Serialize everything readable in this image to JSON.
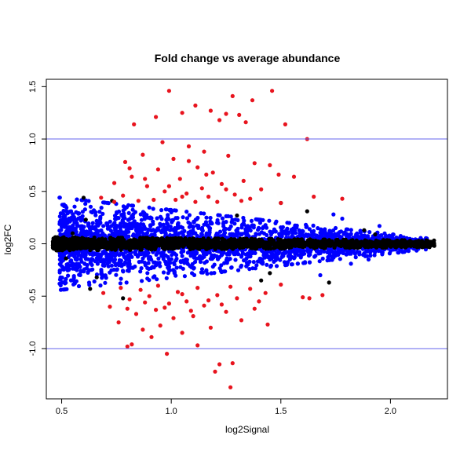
{
  "chart_data": {
    "type": "scatter",
    "title": "Fold change vs average abundance",
    "xlabel": "log2Signal",
    "ylabel": "log2FC",
    "xlim": [
      0.43,
      2.26
    ],
    "ylim": [
      -1.48,
      1.57
    ],
    "x_ticks": [
      0.5,
      1.0,
      1.5,
      2.0
    ],
    "x_tick_labels": [
      "0.5",
      "1.0",
      "1.5",
      "2.0"
    ],
    "y_ticks": [
      -1.0,
      -0.5,
      0.0,
      0.5,
      1.0,
      1.5
    ],
    "y_tick_labels": [
      "-1.0",
      "-0.5",
      "0.0",
      "0.5",
      "1.0",
      "1.5"
    ],
    "grid": false,
    "reference_lines": [
      {
        "axis": "y",
        "value": 1.0,
        "color": "#6666ee"
      },
      {
        "axis": "y",
        "value": -1.0,
        "color": "#6666ee"
      }
    ],
    "colors": {
      "background_points": "#000000",
      "mid_points": "#0000ff",
      "extreme_points": "#e8141e"
    },
    "series": [
      {
        "color": "#000000",
        "band": {
          "x_range": [
            0.46,
            2.2
          ],
          "y_center": 0.0,
          "y_spread_start": 0.06,
          "y_spread_end": 0.03
        },
        "points": [
          [
            0.6,
            0.44
          ],
          [
            0.73,
            0.41
          ],
          [
            0.66,
            -0.32
          ],
          [
            0.63,
            -0.43
          ],
          [
            0.78,
            -0.52
          ],
          [
            1.88,
            0.13
          ],
          [
            1.93,
            0.09
          ],
          [
            2.05,
            -0.03
          ],
          [
            2.12,
            -0.01
          ],
          [
            2.2,
            -0.02
          ],
          [
            1.62,
            0.31
          ],
          [
            1.45,
            -0.28
          ],
          [
            1.3,
            0.27
          ],
          [
            1.41,
            -0.35
          ],
          [
            0.55,
            0.1
          ],
          [
            0.52,
            -0.14
          ],
          [
            1.96,
            0.02
          ],
          [
            1.5,
            0.39
          ],
          [
            1.72,
            -0.37
          ],
          [
            0.61,
            0.23
          ]
        ]
      },
      {
        "color": "#0000ff",
        "band": {
          "x_range": [
            0.49,
            2.17
          ],
          "y_center": 0.0,
          "y_spread_start": 0.42,
          "y_spread_end": 0.05
        },
        "points": [
          [
            1.78,
            0.24
          ],
          [
            1.82,
            -0.19
          ],
          [
            2.0,
            -0.07
          ],
          [
            2.1,
            0.04
          ],
          [
            1.95,
            0.17
          ],
          [
            1.9,
            -0.15
          ],
          [
            2.15,
            -0.01
          ],
          [
            1.68,
            -0.3
          ],
          [
            1.74,
            0.28
          ],
          [
            0.64,
            0.3
          ],
          [
            0.62,
            -0.27
          ]
        ]
      },
      {
        "color": "#e8141e",
        "points": [
          [
            0.99,
            1.46
          ],
          [
            1.46,
            1.46
          ],
          [
            1.28,
            1.41
          ],
          [
            1.37,
            1.37
          ],
          [
            1.11,
            1.32
          ],
          [
            1.18,
            1.27
          ],
          [
            1.05,
            1.25
          ],
          [
            1.25,
            1.24
          ],
          [
            1.31,
            1.23
          ],
          [
            0.93,
            1.21
          ],
          [
            1.22,
            1.18
          ],
          [
            1.34,
            1.16
          ],
          [
            0.83,
            1.14
          ],
          [
            1.52,
            1.14
          ],
          [
            1.62,
            1.0
          ],
          [
            0.96,
            0.97
          ],
          [
            1.08,
            0.93
          ],
          [
            1.15,
            0.88
          ],
          [
            0.87,
            0.85
          ],
          [
            1.26,
            0.84
          ],
          [
            1.01,
            0.81
          ],
          [
            0.79,
            0.78
          ],
          [
            1.38,
            0.77
          ],
          [
            1.45,
            0.75
          ],
          [
            1.12,
            0.73
          ],
          [
            0.94,
            0.71
          ],
          [
            1.19,
            0.68
          ],
          [
            1.49,
            0.66
          ],
          [
            0.82,
            0.64
          ],
          [
            1.56,
            0.64
          ],
          [
            1.04,
            0.62
          ],
          [
            1.33,
            0.6
          ],
          [
            0.74,
            0.58
          ],
          [
            1.23,
            0.57
          ],
          [
            0.89,
            0.55
          ],
          [
            1.14,
            0.53
          ],
          [
            1.41,
            0.52
          ],
          [
            0.97,
            0.5
          ],
          [
            1.07,
            0.48
          ],
          [
            1.29,
            0.47
          ],
          [
            0.78,
            0.46
          ],
          [
            1.17,
            0.45
          ],
          [
            1.65,
            0.45
          ],
          [
            0.68,
            0.44
          ],
          [
            1.36,
            0.43
          ],
          [
            1.02,
            0.42
          ],
          [
            1.78,
            0.43
          ],
          [
            0.85,
            0.41
          ],
          [
            1.21,
            0.4
          ],
          [
            1.5,
            0.39
          ],
          [
            0.92,
            0.42
          ],
          [
            1.11,
            0.4
          ],
          [
            1.32,
            0.41
          ],
          [
            0.74,
            0.4
          ],
          [
            1.05,
            0.45
          ],
          [
            0.99,
            0.55
          ],
          [
            1.25,
            0.52
          ],
          [
            0.88,
            0.62
          ],
          [
            1.16,
            0.66
          ],
          [
            0.81,
            0.72
          ],
          [
            1.08,
            0.79
          ],
          [
            1.27,
            -1.37
          ],
          [
            1.2,
            -1.22
          ],
          [
            1.22,
            -1.15
          ],
          [
            1.28,
            -1.14
          ],
          [
            0.98,
            -1.05
          ],
          [
            0.82,
            -0.96
          ],
          [
            0.8,
            -0.98
          ],
          [
            1.12,
            -0.97
          ],
          [
            0.91,
            -0.89
          ],
          [
            1.05,
            -0.85
          ],
          [
            0.87,
            -0.82
          ],
          [
            1.18,
            -0.8
          ],
          [
            0.95,
            -0.78
          ],
          [
            1.44,
            -0.77
          ],
          [
            0.76,
            -0.75
          ],
          [
            1.32,
            -0.73
          ],
          [
            1.01,
            -0.71
          ],
          [
            1.1,
            -0.69
          ],
          [
            0.84,
            -0.67
          ],
          [
            1.25,
            -0.65
          ],
          [
            0.93,
            -0.63
          ],
          [
            1.38,
            -0.62
          ],
          [
            0.72,
            -0.6
          ],
          [
            1.15,
            -0.59
          ],
          [
            0.99,
            -0.57
          ],
          [
            1.6,
            -0.51
          ],
          [
            1.63,
            -0.52
          ],
          [
            1.69,
            -0.49
          ],
          [
            1.07,
            -0.55
          ],
          [
            0.81,
            -0.53
          ],
          [
            1.3,
            -0.52
          ],
          [
            0.9,
            -0.5
          ],
          [
            1.21,
            -0.49
          ],
          [
            0.69,
            -0.47
          ],
          [
            1.43,
            -0.47
          ],
          [
            1.03,
            -0.46
          ],
          [
            0.86,
            -0.44
          ],
          [
            1.36,
            -0.43
          ],
          [
            0.77,
            -0.42
          ],
          [
            1.12,
            -0.42
          ],
          [
            1.27,
            -0.41
          ],
          [
            0.94,
            -0.4
          ],
          [
            1.5,
            -0.39
          ],
          [
            1.05,
            -0.48
          ],
          [
            1.17,
            -0.54
          ],
          [
            0.97,
            -0.61
          ],
          [
            1.23,
            -0.58
          ],
          [
            0.88,
            -0.56
          ],
          [
            1.4,
            -0.55
          ],
          [
            0.8,
            -0.62
          ],
          [
            1.09,
            -0.64
          ]
        ]
      }
    ]
  }
}
